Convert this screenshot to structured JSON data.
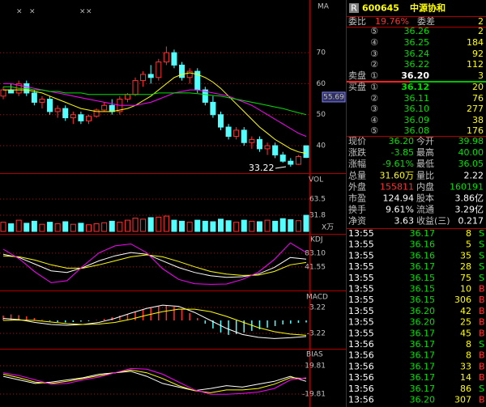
{
  "stock": {
    "badge": "R",
    "code": "600645",
    "name": "中源协和"
  },
  "order_book": {
    "ratio_label": "委比",
    "ratio": "19.76%",
    "diff_label": "委差",
    "diff": "2",
    "sell_label": "卖盘",
    "buy_label": "买盘",
    "sells": [
      {
        "level": "⑤",
        "price": "36.26",
        "volume": "2"
      },
      {
        "level": "④",
        "price": "36.25",
        "volume": "184"
      },
      {
        "level": "③",
        "price": "36.24",
        "volume": "92"
      },
      {
        "level": "②",
        "price": "36.22",
        "volume": "112"
      },
      {
        "level": "①",
        "price": "36.20",
        "volume": "3"
      }
    ],
    "buys": [
      {
        "level": "①",
        "price": "36.12",
        "volume": "20"
      },
      {
        "level": "②",
        "price": "36.11",
        "volume": "76"
      },
      {
        "level": "③",
        "price": "36.10",
        "volume": "277"
      },
      {
        "level": "④",
        "price": "36.09",
        "volume": "38"
      },
      {
        "level": "⑤",
        "price": "36.08",
        "volume": "176"
      }
    ]
  },
  "quote": [
    [
      "现价",
      "36.20",
      "今开",
      "39.98"
    ],
    [
      "涨跌",
      "-3.85",
      "最高",
      "40.00"
    ],
    [
      "涨幅",
      "-9.61%",
      "最低",
      "36.05"
    ],
    [
      "总量",
      "31.60万",
      "量比",
      "2.22"
    ],
    [
      "外盘",
      "155811",
      "内盘",
      "160191"
    ],
    [
      "市盈",
      "124.94",
      "股本",
      "3.86亿"
    ],
    [
      "换手",
      "9.61%",
      "流通",
      "3.29亿"
    ],
    [
      "净资",
      "3.63",
      "收益(三)",
      "0.217"
    ]
  ],
  "trades": [
    [
      "13:55",
      "36.17",
      "8",
      "S"
    ],
    [
      "13:55",
      "36.16",
      "5",
      "S"
    ],
    [
      "13:55",
      "36.16",
      "35",
      "S"
    ],
    [
      "13:55",
      "36.17",
      "28",
      "S"
    ],
    [
      "13:55",
      "36.15",
      "75",
      "S"
    ],
    [
      "13:55",
      "36.15",
      "10",
      "B"
    ],
    [
      "13:55",
      "36.15",
      "306",
      "B"
    ],
    [
      "13:55",
      "36.20",
      "42",
      "B"
    ],
    [
      "13:55",
      "36.20",
      "25",
      "B"
    ],
    [
      "13:55",
      "36.17",
      "45",
      "B"
    ],
    [
      "13:56",
      "36.17",
      "8",
      "S"
    ],
    [
      "13:56",
      "36.17",
      "8",
      "B"
    ],
    [
      "13:56",
      "36.17",
      "33",
      "B"
    ],
    [
      "13:56",
      "36.17",
      "14",
      "B"
    ],
    [
      "13:56",
      "36.17",
      "86",
      "S"
    ],
    [
      "13:56",
      "36.20",
      "307",
      "B"
    ]
  ],
  "chart_data": [
    {
      "type": "candlestick",
      "label": "MA",
      "top_marks": [
        "×",
        "×",
        "×",
        "×"
      ],
      "up_color": "#ff3232",
      "down_color": "#54ffff",
      "ohlc": [
        [
          56,
          59,
          55,
          58
        ],
        [
          58,
          60,
          57,
          57
        ],
        [
          57,
          61,
          56,
          60
        ],
        [
          60,
          61,
          56,
          57
        ],
        [
          57,
          58,
          53,
          54
        ],
        [
          54,
          56,
          52,
          55
        ],
        [
          55,
          56,
          50,
          51
        ],
        [
          51,
          53,
          49,
          52
        ],
        [
          52,
          53,
          48,
          49
        ],
        [
          49,
          51,
          47,
          50
        ],
        [
          50,
          51,
          47,
          48
        ],
        [
          48,
          50,
          47,
          49.5
        ],
        [
          49.5,
          52,
          49,
          51.5
        ],
        [
          51.5,
          54,
          51,
          53
        ],
        [
          53,
          55,
          50,
          51
        ],
        [
          51,
          56,
          50,
          55
        ],
        [
          55,
          57,
          54,
          56.5
        ],
        [
          56.5,
          62,
          56,
          61
        ],
        [
          61,
          64,
          59,
          63
        ],
        [
          63,
          66,
          60,
          62
        ],
        [
          62,
          68,
          61,
          67
        ],
        [
          67,
          72,
          66,
          70
        ],
        [
          70,
          71,
          65,
          66
        ],
        [
          66,
          67,
          61,
          62
        ],
        [
          62,
          65,
          60,
          64
        ],
        [
          64,
          65,
          57,
          58
        ],
        [
          58,
          59,
          53,
          54
        ],
        [
          54,
          56,
          49,
          50
        ],
        [
          50,
          51,
          45,
          46
        ],
        [
          46,
          47,
          42,
          43
        ],
        [
          43,
          46,
          42,
          45
        ],
        [
          45,
          46,
          40,
          41
        ],
        [
          41,
          43,
          39,
          42
        ],
        [
          42,
          43,
          38,
          39
        ],
        [
          39,
          41,
          37,
          40
        ],
        [
          40,
          41,
          36,
          37
        ],
        [
          37,
          38,
          34.5,
          35
        ],
        [
          35,
          36,
          33.22,
          34
        ],
        [
          34,
          37,
          33.8,
          36.5
        ],
        [
          39.98,
          40,
          36.05,
          36.2
        ]
      ],
      "series": [
        {
          "color": "#ffff00",
          "values": [
            58,
            58,
            58,
            58,
            57.5,
            57,
            56,
            55,
            54,
            53,
            52,
            51.5,
            51,
            51,
            51,
            51.5,
            52,
            53,
            54.5,
            56,
            58,
            60,
            62,
            63,
            63.5,
            63,
            62,
            60.5,
            58.5,
            56,
            53.5,
            51,
            48.5,
            46,
            44,
            42,
            40.5,
            39,
            38,
            37.5
          ]
        },
        {
          "color": "#ff00ff",
          "values": [
            60,
            60,
            59.5,
            59,
            58.5,
            58,
            57.5,
            57,
            56.5,
            56,
            55.5,
            55,
            54.5,
            54,
            53.5,
            53,
            53,
            53,
            53.5,
            54,
            55,
            56,
            57,
            57.5,
            58,
            58,
            57.5,
            57,
            56.5,
            56,
            55,
            54,
            53,
            51.5,
            50,
            48.5,
            47,
            45.5,
            44,
            43
          ]
        },
        {
          "color": "#00e000",
          "values": [
            59,
            59,
            58.5,
            58.5,
            58,
            58,
            57.5,
            57.5,
            57,
            57,
            57,
            56.5,
            56.5,
            56.5,
            56.5,
            56.5,
            56.5,
            56.5,
            56.5,
            56.5,
            57,
            57,
            57,
            57,
            57,
            56.8,
            56.5,
            56.2,
            56,
            55.5,
            55,
            54.5,
            54,
            53.5,
            53,
            52.5,
            52,
            51.3,
            50.6,
            50
          ]
        }
      ],
      "marker_value": 55.69,
      "low_label": 33.22,
      "ylim": [
        31.4,
        87
      ],
      "yticks": [
        40,
        50,
        60,
        70
      ]
    },
    {
      "type": "bar",
      "label": "VOL",
      "unit": "X万",
      "values": [
        18,
        15,
        22,
        16,
        20,
        14,
        18,
        15,
        19,
        14,
        16,
        13,
        15,
        17,
        20,
        18,
        22,
        26,
        24,
        27,
        28,
        30,
        22,
        20,
        18,
        22,
        20,
        19,
        24,
        21,
        18,
        22,
        20,
        19,
        22,
        20,
        25,
        23,
        21,
        31.6
      ],
      "ylim": [
        0,
        111
      ],
      "yticks": [
        31.8,
        63.5
      ]
    },
    {
      "type": "line",
      "label": "KDJ",
      "series": [
        {
          "color": "#ffffff",
          "values": [
            80,
            70,
            50,
            30,
            25,
            40,
            60,
            75,
            85,
            80,
            60,
            40,
            25,
            15,
            10,
            12,
            20,
            40,
            70,
            65
          ]
        },
        {
          "color": "#ffff00",
          "values": [
            75,
            72,
            62,
            48,
            38,
            38,
            48,
            60,
            72,
            78,
            72,
            58,
            42,
            28,
            20,
            16,
            17,
            28,
            48,
            55
          ]
        },
        {
          "color": "#ff00ff",
          "values": [
            95,
            66,
            26,
            -6,
            0,
            44,
            84,
            105,
            111,
            84,
            36,
            4,
            -9,
            -11,
            -10,
            4,
            26,
            64,
            114,
            85
          ]
        }
      ],
      "ylim": [
        -27,
        139
      ],
      "yticks": [
        41.55,
        {
          "value": 83.1,
          "label": "83.10"
        }
      ]
    },
    {
      "type": "macd",
      "label": "MACD",
      "up_color": "#ff3232",
      "down_color": "#54ffff",
      "values": [
        1.2,
        1.5,
        1.3,
        1.0,
        0.6,
        0.2,
        -0.2,
        -0.4,
        -0.5,
        -0.4,
        -0.3,
        -0.2,
        0.1,
        0.4,
        0.8,
        1.2,
        1.6,
        2.2,
        2.8,
        3.2,
        3.6,
        3.8,
        3.4,
        2.8,
        1.8,
        0.6,
        -0.8,
        -2.0,
        -3.0,
        -3.6,
        -3.4,
        -3.0,
        -2.6,
        -2.2,
        -1.8,
        -1.4,
        -1.0,
        -0.8,
        -0.6,
        -0.5
      ],
      "series": [
        {
          "color": "#ffffff",
          "values": [
            0.5,
            0.2,
            -0.5,
            -1.0,
            -1.2,
            -1.0,
            -0.5,
            0.5,
            1.8,
            3.0,
            3.8,
            3.5,
            2.0,
            0,
            -2.0,
            -3.5,
            -4.2,
            -4.5,
            -4.3,
            -4.0
          ]
        },
        {
          "color": "#ffff00",
          "values": [
            0,
            0.1,
            0,
            -0.4,
            -0.8,
            -1.0,
            -0.9,
            -0.5,
            0.3,
            1.3,
            2.2,
            2.8,
            2.8,
            2.2,
            1.0,
            -0.4,
            -1.8,
            -2.8,
            -3.4,
            -3.7
          ]
        }
      ],
      "ylim": [
        -6.84,
        7.24
      ],
      "yticks": [
        -3.22,
        3.22
      ]
    },
    {
      "type": "line",
      "label": "BIAS",
      "series": [
        {
          "color": "#ffffff",
          "values": [
            5,
            0,
            -5,
            -3,
            0,
            3,
            8,
            10,
            12,
            5,
            -5,
            -10,
            -15,
            -12,
            -8,
            -10,
            -6,
            -2,
            5,
            -2
          ]
        },
        {
          "color": "#ffff00",
          "values": [
            8,
            3,
            -3,
            -5,
            -2,
            2,
            6,
            10,
            14,
            10,
            2,
            -8,
            -15,
            -18,
            -14,
            -14,
            -12,
            -6,
            3,
            2
          ]
        },
        {
          "color": "#ff00ff",
          "values": [
            10,
            6,
            0,
            -6,
            -5,
            0,
            4,
            10,
            16,
            15,
            8,
            -3,
            -14,
            -20,
            -20,
            -19,
            -17,
            -12,
            0,
            3
          ]
        }
      ],
      "ylim": [
        -37.9,
        42.5
      ],
      "yticks": [
        -19.81,
        19.81
      ]
    }
  ]
}
